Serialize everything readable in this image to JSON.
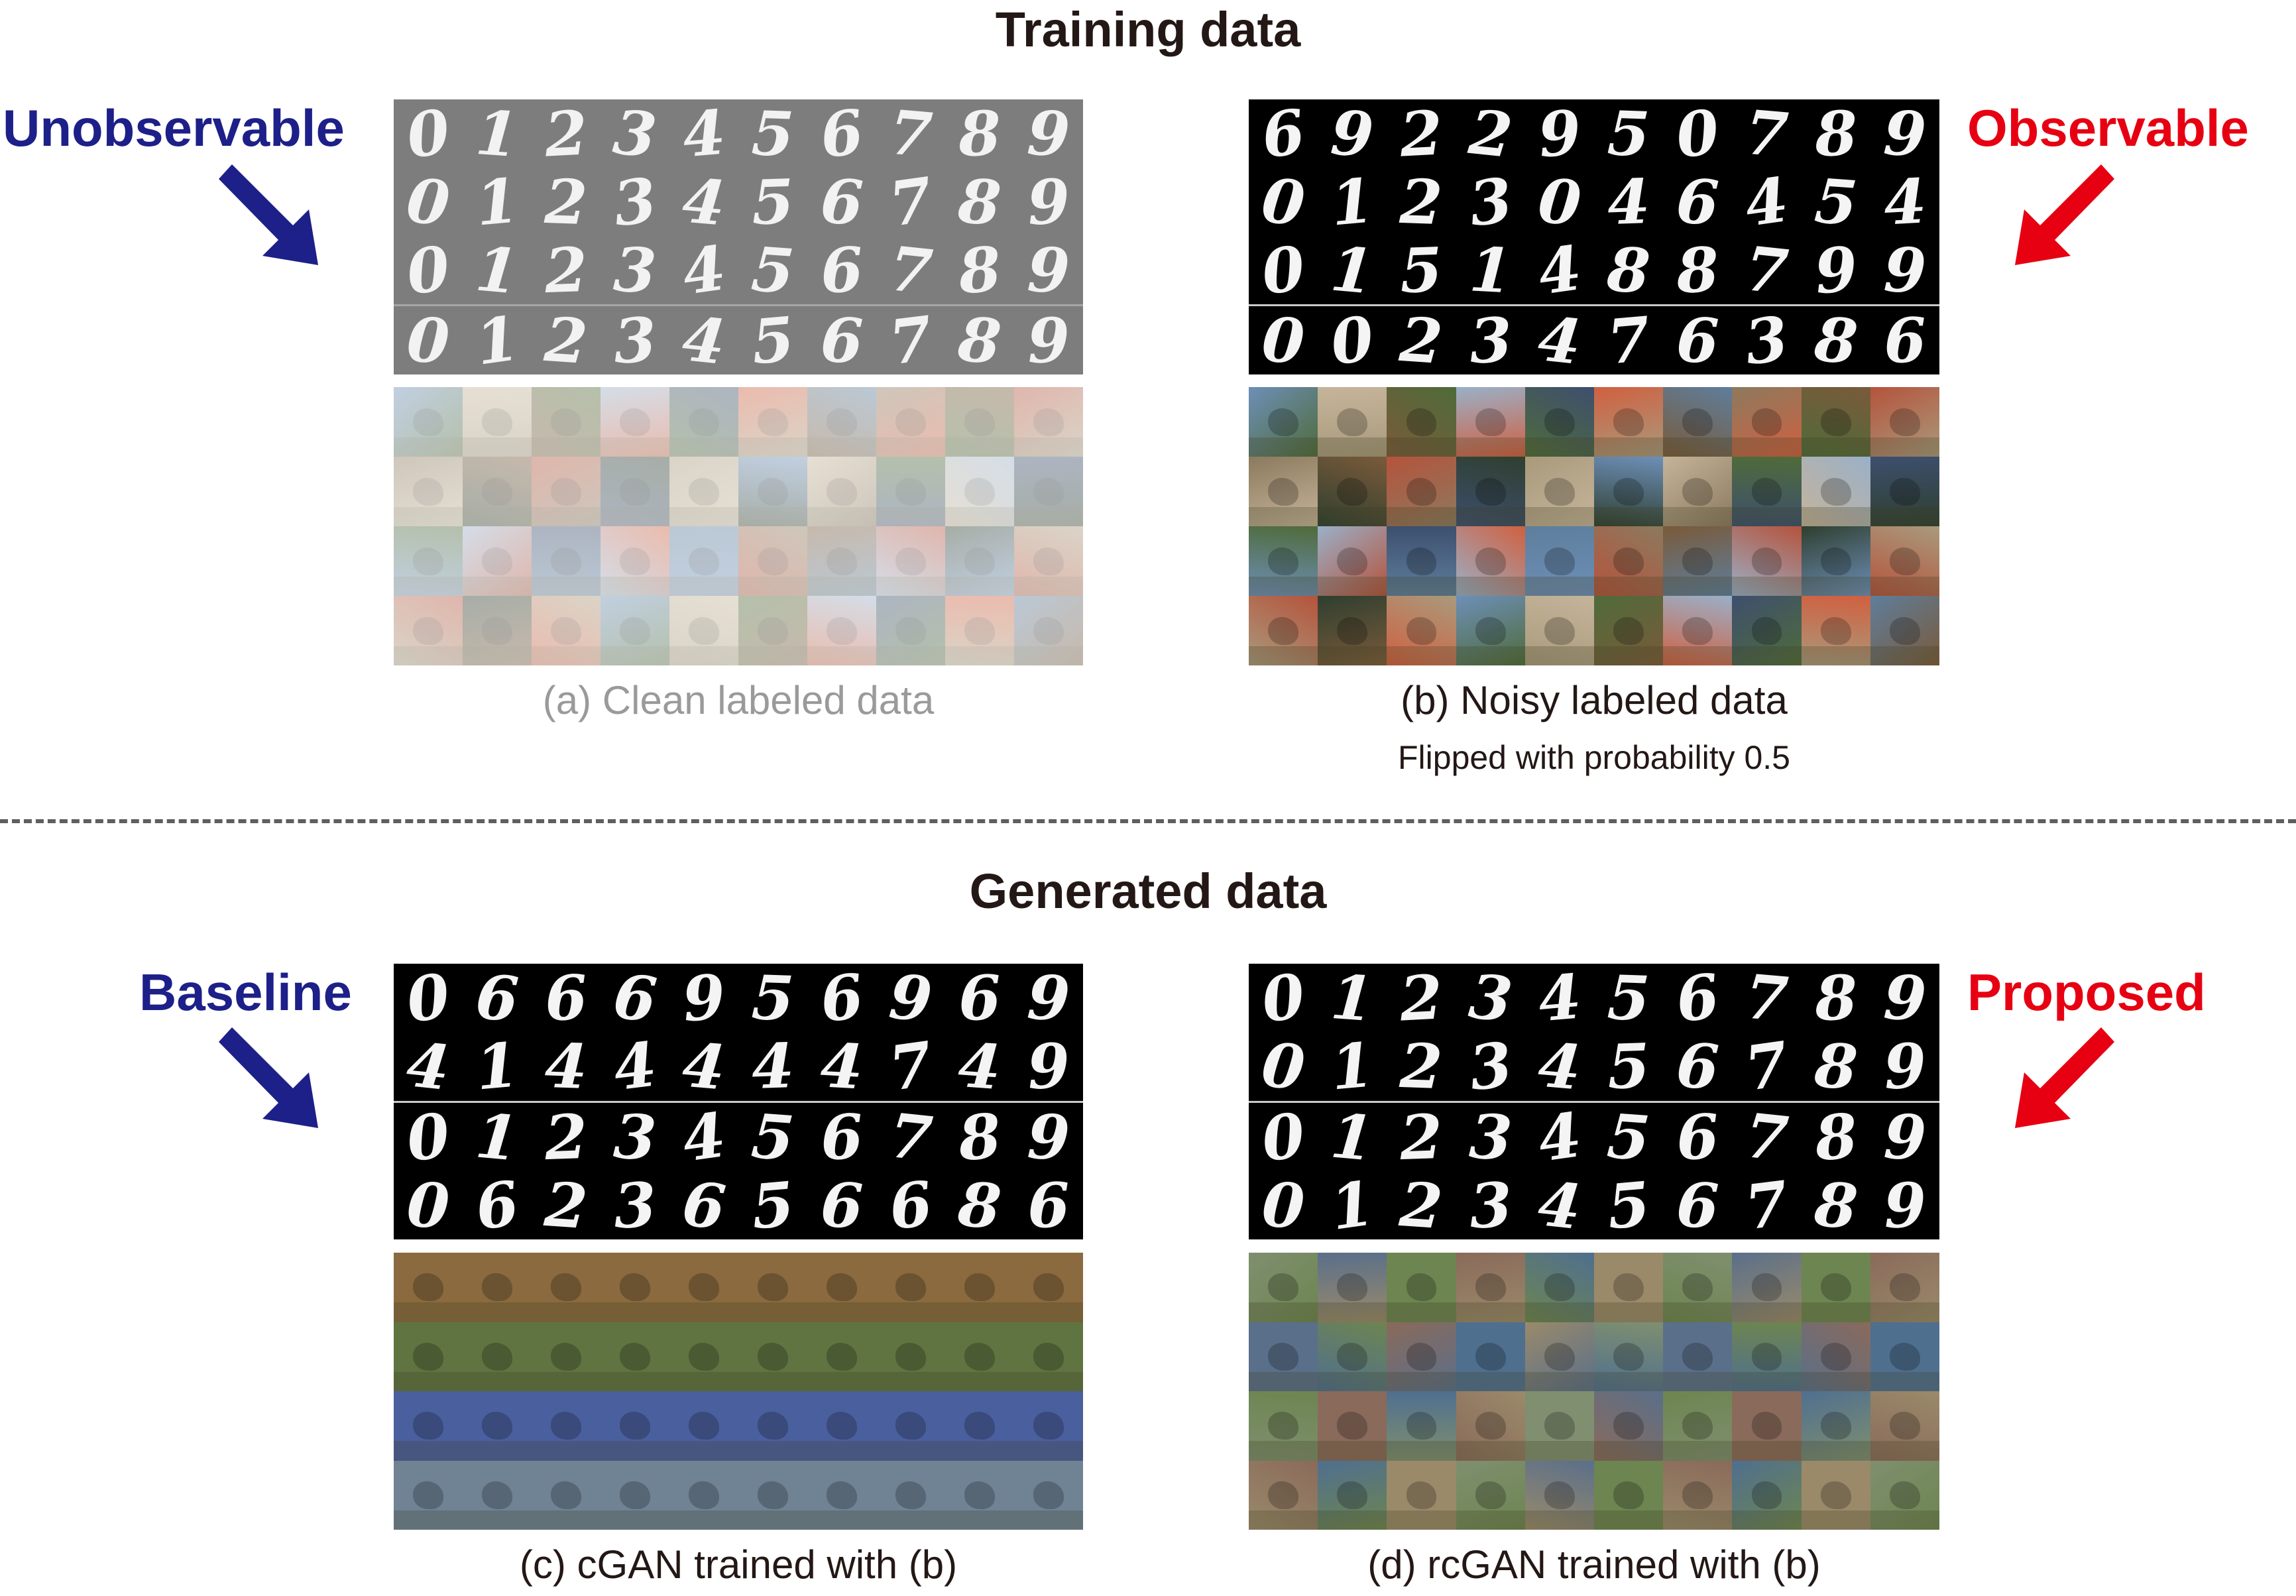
{
  "training": {
    "title": "Training data",
    "left_label": "Unobservable",
    "right_label": "Observable",
    "clean": {
      "caption": "(a) Clean labeled data",
      "digit_rows": [
        [
          "0",
          "1",
          "2",
          "3",
          "4",
          "5",
          "6",
          "7",
          "8",
          "9"
        ],
        [
          "0",
          "1",
          "2",
          "3",
          "4",
          "5",
          "6",
          "7",
          "8",
          "9"
        ],
        [
          "0",
          "1",
          "2",
          "3",
          "4",
          "5",
          "6",
          "7",
          "8",
          "9"
        ],
        [
          "0",
          "1",
          "2",
          "3",
          "4",
          "5",
          "6",
          "7",
          "8",
          "9"
        ]
      ]
    },
    "noisy": {
      "caption": "(b) Noisy labeled data",
      "subcaption": "Flipped with probability 0.5",
      "digit_rows": [
        [
          "6",
          "9",
          "2",
          "2",
          "9",
          "5",
          "0",
          "7",
          "8",
          "9"
        ],
        [
          "0",
          "1",
          "2",
          "3",
          "0",
          "4",
          "6",
          "4",
          "5",
          "4"
        ],
        [
          "0",
          "1",
          "5",
          "1",
          "4",
          "8",
          "8",
          "7",
          "9",
          "9"
        ],
        [
          "0",
          "0",
          "2",
          "3",
          "4",
          "7",
          "6",
          "3",
          "8",
          "6"
        ]
      ]
    }
  },
  "generated": {
    "title": "Generated data",
    "left_label": "Baseline",
    "right_label": "Proposed",
    "cgan": {
      "caption": "(c) cGAN trained with (b)",
      "digit_rows": [
        [
          "0",
          "6",
          "6",
          "6",
          "9",
          "5",
          "6",
          "9",
          "6",
          "9"
        ],
        [
          "4",
          "1",
          "4",
          "4",
          "4",
          "4",
          "4",
          "7",
          "4",
          "9"
        ],
        [
          "0",
          "1",
          "2",
          "3",
          "4",
          "5",
          "6",
          "7",
          "8",
          "9"
        ],
        [
          "0",
          "6",
          "2",
          "3",
          "6",
          "5",
          "6",
          "6",
          "8",
          "6"
        ]
      ]
    },
    "rcgan": {
      "caption": "(d) rcGAN trained with (b)",
      "digit_rows": [
        [
          "0",
          "1",
          "2",
          "3",
          "4",
          "5",
          "6",
          "7",
          "8",
          "9"
        ],
        [
          "0",
          "1",
          "2",
          "3",
          "4",
          "5",
          "6",
          "7",
          "8",
          "9"
        ],
        [
          "0",
          "1",
          "2",
          "3",
          "4",
          "5",
          "6",
          "7",
          "8",
          "9"
        ],
        [
          "0",
          "1",
          "2",
          "3",
          "4",
          "5",
          "6",
          "7",
          "8",
          "9"
        ]
      ]
    }
  },
  "colors": {
    "blue": "#1d2088",
    "red": "#e60012",
    "text": "#231815"
  },
  "icons": [
    "arrow-down-right-icon",
    "arrow-down-left-icon"
  ]
}
